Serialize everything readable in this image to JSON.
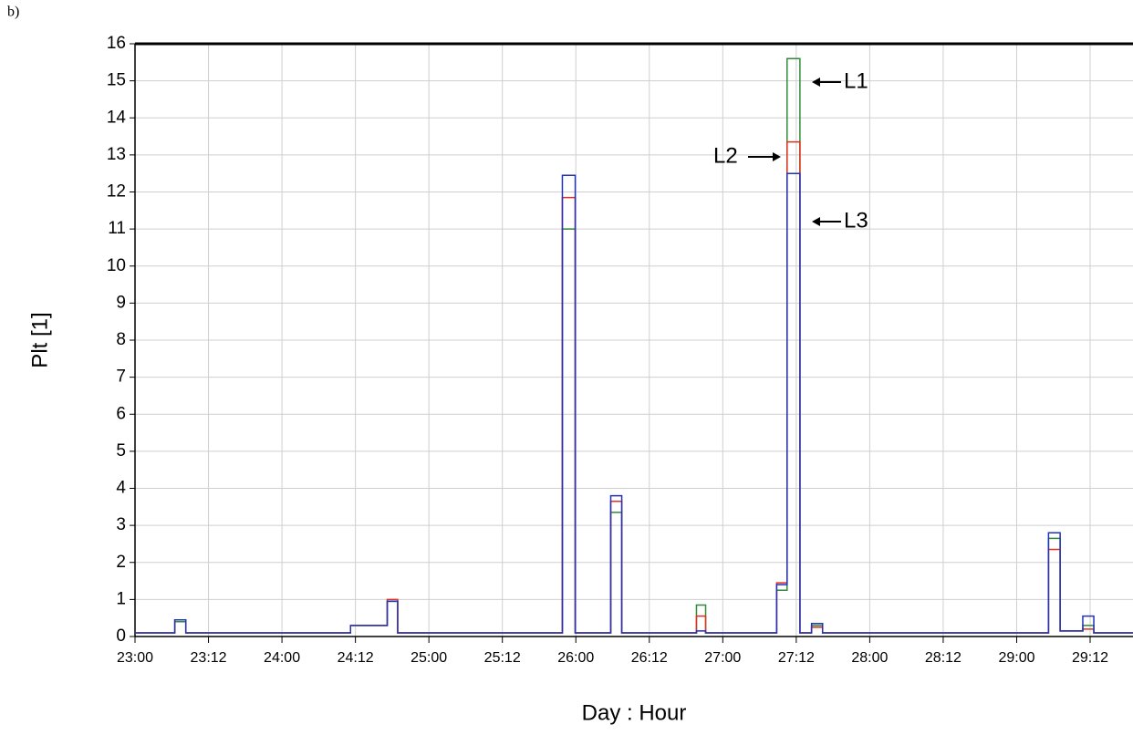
{
  "chart_data": {
    "type": "step-line",
    "panel_label": "b)",
    "x_label": "Day : Hour",
    "y_label": "Plt [1]",
    "xlim": [
      0,
      163
    ],
    "ylim": [
      0,
      16
    ],
    "xticks": [
      {
        "value": 0,
        "label": "23:00"
      },
      {
        "value": 12,
        "label": "23:12"
      },
      {
        "value": 24,
        "label": "24:00"
      },
      {
        "value": 36,
        "label": "24:12"
      },
      {
        "value": 48,
        "label": "25:00"
      },
      {
        "value": 60,
        "label": "25:12"
      },
      {
        "value": 72,
        "label": "26:00"
      },
      {
        "value": 84,
        "label": "26:12"
      },
      {
        "value": 96,
        "label": "27:00"
      },
      {
        "value": 108,
        "label": "27:12"
      },
      {
        "value": 120,
        "label": "28:00"
      },
      {
        "value": 132,
        "label": "28:12"
      },
      {
        "value": 144,
        "label": "29:00"
      },
      {
        "value": 156,
        "label": "29:12"
      }
    ],
    "yticks": [
      0,
      1,
      2,
      3,
      4,
      5,
      6,
      7,
      8,
      9,
      10,
      11,
      12,
      13,
      14,
      15,
      16
    ],
    "grid": true,
    "x": [
      0,
      6.5,
      8.3,
      35.2,
      41.2,
      42.9,
      69.8,
      71.9,
      77.7,
      79.5,
      91.7,
      93.2,
      104.8,
      106.5,
      108.6,
      110.5,
      112.3,
      149.2,
      151.1,
      154.8,
      156.6,
      163
    ],
    "series": [
      {
        "name": "L1",
        "color": "#2e8b3a",
        "values": [
          0.1,
          0.4,
          0.1,
          0.3,
          0.95,
          0.1,
          11.0,
          0.1,
          3.35,
          0.1,
          0.85,
          0.1,
          1.25,
          15.6,
          0.1,
          0.3,
          0.1,
          2.65,
          0.15,
          0.3,
          0.1,
          0.1
        ]
      },
      {
        "name": "L2",
        "color": "#e0301e",
        "values": [
          0.1,
          0.45,
          0.1,
          0.3,
          1.0,
          0.1,
          11.85,
          0.1,
          3.65,
          0.1,
          0.55,
          0.1,
          1.45,
          13.35,
          0.1,
          0.25,
          0.1,
          2.35,
          0.15,
          0.2,
          0.1,
          0.1
        ]
      },
      {
        "name": "L3",
        "color": "#2233bb",
        "values": [
          0.1,
          0.45,
          0.1,
          0.3,
          0.95,
          0.1,
          12.45,
          0.1,
          3.8,
          0.1,
          0.15,
          0.1,
          1.4,
          12.5,
          0.1,
          0.35,
          0.1,
          2.8,
          0.15,
          0.55,
          0.1,
          0.1
        ]
      }
    ]
  }
}
